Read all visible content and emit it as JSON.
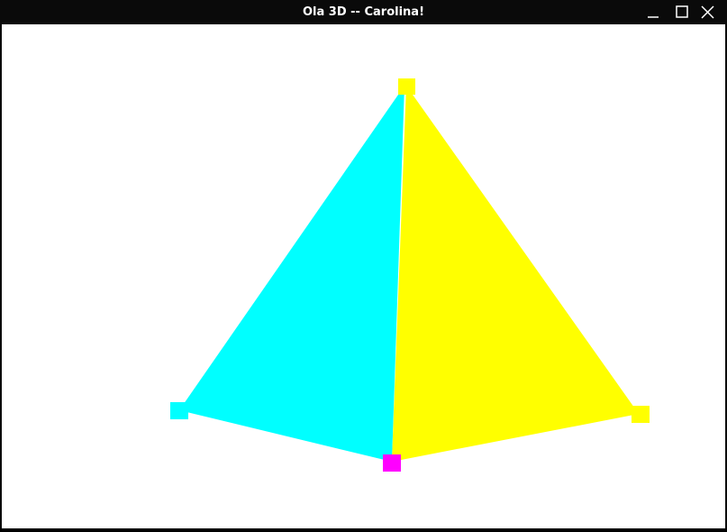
{
  "window": {
    "title": "Ola 3D -- Carolina!",
    "controls": {
      "minimize": "minimize-icon",
      "maximize": "maximize-icon",
      "close": "close-icon"
    }
  },
  "scene": {
    "background": "#ffffff",
    "faces": [
      {
        "name": "left-face",
        "color": "#00ffff"
      },
      {
        "name": "right-face",
        "color": "#ffff00"
      }
    ],
    "vertex_markers": [
      {
        "name": "top-vertex-marker",
        "color": "#ffff00"
      },
      {
        "name": "left-vertex-marker",
        "color": "#00ffff"
      },
      {
        "name": "right-vertex-marker",
        "color": "#ffff00"
      },
      {
        "name": "front-vertex-marker",
        "color": "#ff00ff"
      }
    ]
  }
}
